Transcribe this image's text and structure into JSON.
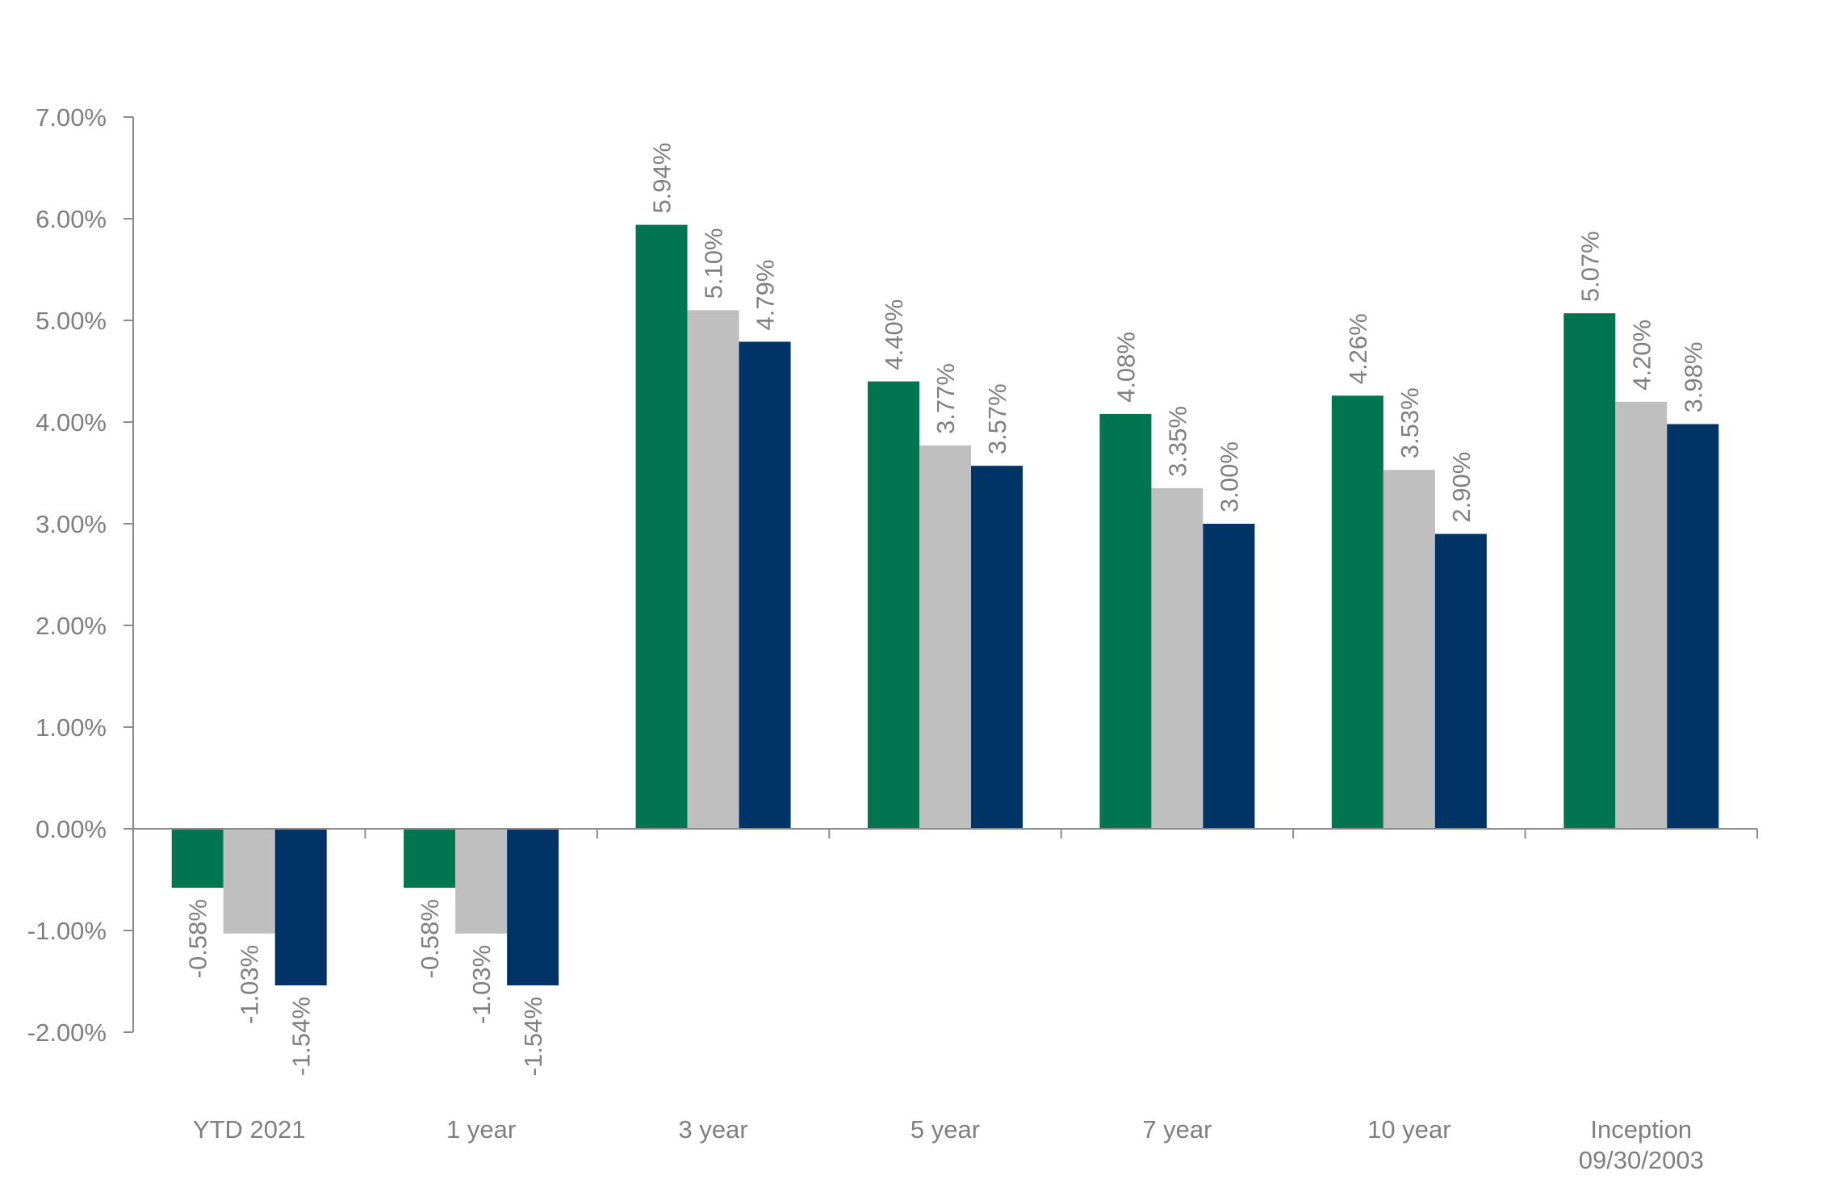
{
  "chart_data": {
    "type": "bar",
    "categories": [
      "YTD 2021",
      "1 year",
      "3 year",
      "5 year",
      "7 year",
      "10 year",
      "Inception\n09/30/2003"
    ],
    "series": [
      {
        "color": "#007550",
        "values": [
          -0.58,
          -0.58,
          5.94,
          4.4,
          4.08,
          4.26,
          5.07
        ],
        "labels": [
          "-0.58%",
          "-0.58%",
          "5.94%",
          "4.40%",
          "4.08%",
          "4.26%",
          "5.07%"
        ]
      },
      {
        "color": "#bfbfbf",
        "values": [
          -1.03,
          -1.03,
          5.1,
          3.77,
          3.35,
          3.53,
          4.2
        ],
        "labels": [
          "-1.03%",
          "-1.03%",
          "5.10%",
          "3.77%",
          "3.35%",
          "3.53%",
          "4.20%"
        ]
      },
      {
        "color": "#003366",
        "values": [
          -1.54,
          -1.54,
          4.79,
          3.57,
          3.0,
          2.9,
          3.98
        ],
        "labels": [
          "-1.54%",
          "-1.54%",
          "4.79%",
          "3.57%",
          "3.00%",
          "2.90%",
          "3.98%"
        ]
      }
    ],
    "yticks": [
      "7.00%",
      "6.00%",
      "5.00%",
      "4.00%",
      "3.00%",
      "2.00%",
      "1.00%",
      "0.00%",
      "-1.00%",
      "-2.00%"
    ],
    "ylim": [
      -2,
      7
    ],
    "grid": false,
    "legend": "none",
    "axis_color": "#8c8c8c",
    "text_color": "#7f7f7f"
  }
}
